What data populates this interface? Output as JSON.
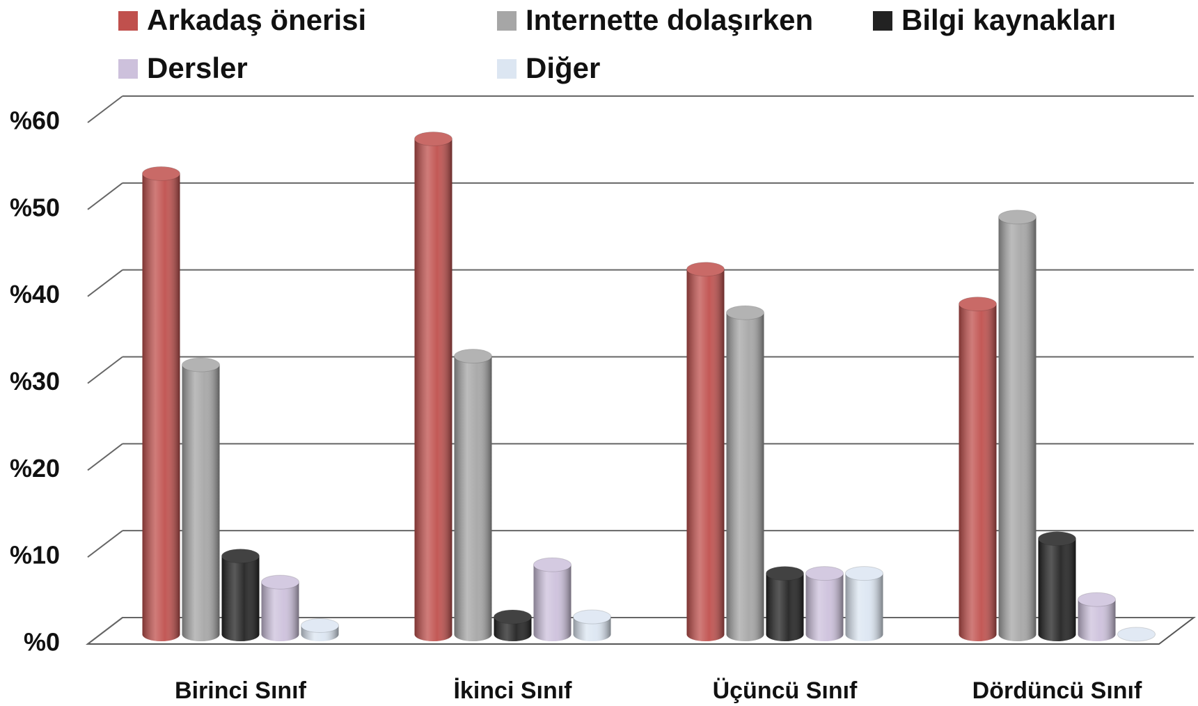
{
  "chart_data": {
    "type": "bar3d",
    "categories": [
      "Birinci Sınıf",
      "İkinci Sınıf",
      "Üçüncü Sınıf",
      "Dördüncü Sınıf"
    ],
    "series": [
      {
        "name": "Arkadaş önerisi",
        "color": "#c0504d",
        "values": [
          53,
          57,
          42,
          38
        ]
      },
      {
        "name": "Internette dolaşırken",
        "color": "#a6a6a6",
        "values": [
          31,
          32,
          37,
          48
        ]
      },
      {
        "name": "Bilgi kaynakları",
        "color": "#222222",
        "values": [
          9,
          2,
          7,
          11
        ]
      },
      {
        "name": "Dersler",
        "color": "#cdc1dc",
        "values": [
          6,
          8,
          7,
          4
        ]
      },
      {
        "name": "Diğer",
        "color": "#dce6f2",
        "values": [
          1,
          2,
          7,
          0
        ]
      }
    ],
    "ylim": [
      0,
      60
    ],
    "yticks": [
      {
        "value": 0,
        "label": "%0"
      },
      {
        "value": 10,
        "label": "%10"
      },
      {
        "value": 20,
        "label": "%20"
      },
      {
        "value": 30,
        "label": "%30"
      },
      {
        "value": 40,
        "label": "%40"
      },
      {
        "value": 50,
        "label": "%50"
      },
      {
        "value": 60,
        "label": "%60"
      }
    ],
    "grid": true,
    "legend": "top"
  }
}
